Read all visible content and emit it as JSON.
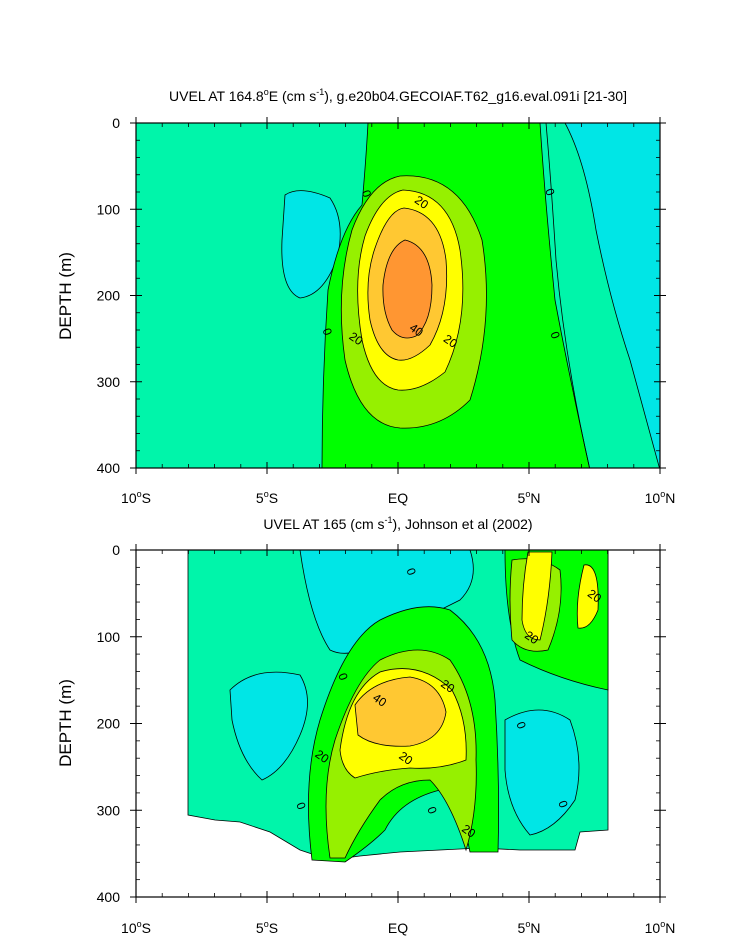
{
  "chart_data": [
    {
      "type": "contour",
      "title_parts": [
        "UVEL AT 164.8",
        "o",
        "E (cm s",
        "-1",
        "), g.e20b04.GECOIAF.T62_g16.eval.091i [21-30]"
      ],
      "ylabel": "DEPTH (m)",
      "xlim": [
        -10,
        10
      ],
      "ylim": [
        0,
        400
      ],
      "y_reversed": true,
      "x_ticks": [
        {
          "value": -10,
          "label": "10",
          "deg": "o",
          "dir": "S"
        },
        {
          "value": -5,
          "label": "5",
          "deg": "o",
          "dir": "S"
        },
        {
          "value": 0,
          "label": "EQ",
          "deg": "",
          "dir": ""
        },
        {
          "value": 5,
          "label": "5",
          "deg": "o",
          "dir": "N"
        },
        {
          "value": 10,
          "label": "10",
          "deg": "o",
          "dir": "N"
        }
      ],
      "y_ticks": [
        {
          "value": 0,
          "label": "0"
        },
        {
          "value": 100,
          "label": "100"
        },
        {
          "value": 200,
          "label": "200"
        },
        {
          "value": 300,
          "label": "300"
        },
        {
          "value": 400,
          "label": "400"
        }
      ],
      "contour_levels": [
        -20,
        -10,
        0,
        10,
        20,
        30,
        40,
        50
      ],
      "contour_labels": [
        {
          "text": "0",
          "x": -1.2,
          "y": 82
        },
        {
          "text": "0",
          "x": 5.8,
          "y": 80
        },
        {
          "text": "0",
          "x": -2.7,
          "y": 242
        },
        {
          "text": "0",
          "x": 6.0,
          "y": 246
        },
        {
          "text": "20",
          "x": 0.9,
          "y": 92
        },
        {
          "text": "20",
          "x": -1.6,
          "y": 250
        },
        {
          "text": "20",
          "x": 2.0,
          "y": 253
        },
        {
          "text": "40",
          "x": 0.7,
          "y": 240
        }
      ]
    },
    {
      "type": "contour",
      "title_parts": [
        "UVEL AT 165 (cm s",
        "-1",
        "), Johnson et al (2002)"
      ],
      "ylabel": "DEPTH (m)",
      "xlim": [
        -10,
        10
      ],
      "ylim": [
        0,
        400
      ],
      "y_reversed": true,
      "x_ticks": [
        {
          "value": -10,
          "label": "10",
          "deg": "o",
          "dir": "S"
        },
        {
          "value": -5,
          "label": "5",
          "deg": "o",
          "dir": "S"
        },
        {
          "value": 0,
          "label": "EQ",
          "deg": "",
          "dir": ""
        },
        {
          "value": 5,
          "label": "5",
          "deg": "o",
          "dir": "N"
        },
        {
          "value": 10,
          "label": "10",
          "deg": "o",
          "dir": "N"
        }
      ],
      "y_ticks": [
        {
          "value": 0,
          "label": "0"
        },
        {
          "value": 100,
          "label": "100"
        },
        {
          "value": 200,
          "label": "200"
        },
        {
          "value": 300,
          "label": "300"
        },
        {
          "value": 400,
          "label": "400"
        }
      ],
      "data_xlim": [
        -8,
        8
      ],
      "contour_labels": [
        {
          "text": "0",
          "x": 0.5,
          "y": 25
        },
        {
          "text": "0",
          "x": -2.1,
          "y": 146
        },
        {
          "text": "0",
          "x": 4.7,
          "y": 202
        },
        {
          "text": "0",
          "x": -3.7,
          "y": 295
        },
        {
          "text": "0",
          "x": 1.3,
          "y": 300
        },
        {
          "text": "0",
          "x": 6.3,
          "y": 293
        },
        {
          "text": "20",
          "x": 7.5,
          "y": 53
        },
        {
          "text": "20",
          "x": 5.1,
          "y": 101
        },
        {
          "text": "20",
          "x": 1.9,
          "y": 157
        },
        {
          "text": "20",
          "x": -2.9,
          "y": 238
        },
        {
          "text": "20",
          "x": 0.3,
          "y": 240
        },
        {
          "text": "20",
          "x": 2.7,
          "y": 324
        },
        {
          "text": "40",
          "x": -0.7,
          "y": 173
        }
      ]
    }
  ],
  "colors": {
    "lt_neg": "#00e6e6",
    "neg": "#00f0c8",
    "near_zero": "#00f5aa",
    "pos_green": "#00ff00",
    "pos_ltgreen": "#96f000",
    "yellow": "#ffff00",
    "orange_lt": "#ffc832",
    "orange": "#ff9632"
  }
}
